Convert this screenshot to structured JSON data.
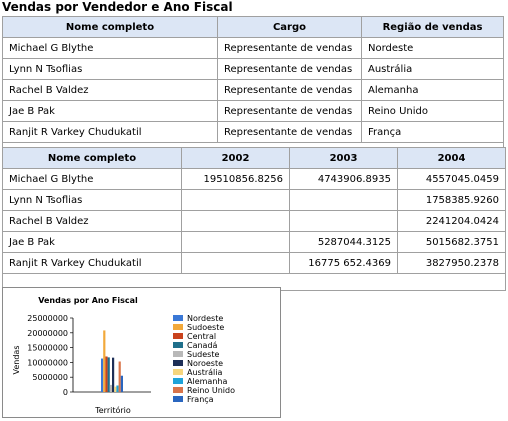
{
  "report": {
    "title": "Vendas por Vendedor e Ano Fiscal"
  },
  "table1": {
    "headers": [
      "Nome completo",
      "Cargo",
      "Região de vendas"
    ],
    "rows": [
      [
        "Michael G Blythe",
        "Representante de vendas",
        "Nordeste"
      ],
      [
        "Lynn N Tsoflias",
        "Representante de vendas",
        "Austrália"
      ],
      [
        "Rachel B Valdez",
        "Representante de vendas",
        "Alemanha"
      ],
      [
        "Jae B Pak",
        "Representante de vendas",
        "Reino Unido"
      ],
      [
        "Ranjit R Varkey Chudukatil",
        "Representante de vendas",
        "França"
      ]
    ]
  },
  "table2": {
    "headers": [
      "Nome completo",
      "2002",
      "2003",
      "2004"
    ],
    "rows": [
      [
        "Michael G Blythe",
        "19510856.8256",
        "4743906.8935",
        "4557045.0459"
      ],
      [
        "Lynn N Tsoflias",
        "",
        "",
        "1758385.9260"
      ],
      [
        "Rachel B Valdez",
        "",
        "",
        "2241204.0424"
      ],
      [
        "Jae B Pak",
        "",
        "5287044.3125",
        "5015682.3751"
      ],
      [
        "Ranjit R Varkey Chudukatil",
        "",
        "16775 652.4369",
        "3827950.2378"
      ]
    ]
  },
  "chart_data": {
    "type": "bar",
    "title": "Vendas por Ano Fiscal",
    "xlabel": "Território",
    "ylabel": "Vendas",
    "ylim": [
      0,
      25000000
    ],
    "yticks": [
      "0",
      "5000000",
      "10000000",
      "15000000",
      "20000000",
      "25000000"
    ],
    "legend_position": "right",
    "series": [
      {
        "name": "Nordeste",
        "color": "#3a78d6",
        "value": 11300000
      },
      {
        "name": "Sudoeste",
        "color": "#f2a93b",
        "value": 20800000
      },
      {
        "name": "Central",
        "color": "#c9421d",
        "value": 12000000
      },
      {
        "name": "Canadá",
        "color": "#1f6f8b",
        "value": 11700000
      },
      {
        "name": "Sudeste",
        "color": "#b8b8b8",
        "value": 2400000
      },
      {
        "name": "Noroeste",
        "color": "#1d2f57",
        "value": 11600000
      },
      {
        "name": "Austrália",
        "color": "#f6d67e",
        "value": 1800000
      },
      {
        "name": "Alemanha",
        "color": "#1fa3d9",
        "value": 2200000
      },
      {
        "name": "Reino Unido",
        "color": "#d9744a",
        "value": 10300000
      },
      {
        "name": "França",
        "color": "#2a66bf",
        "value": 5500000
      }
    ]
  }
}
